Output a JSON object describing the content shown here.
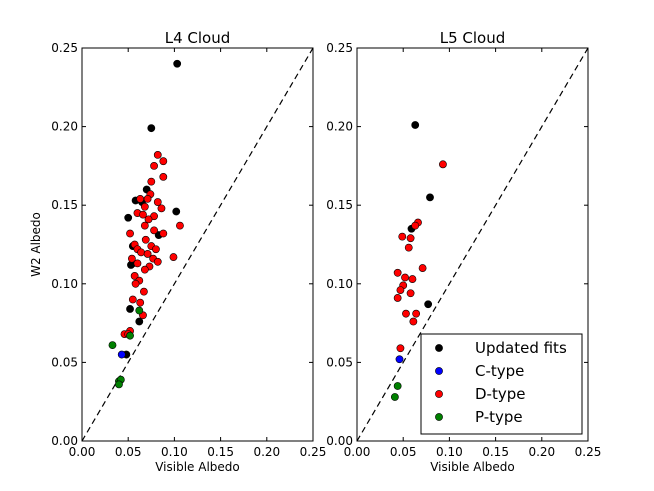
{
  "chart_data": [
    {
      "type": "scatter",
      "title": "L4 Cloud",
      "xlabel": "Visible Albedo",
      "ylabel": "W2 Albedo",
      "xlim": [
        0,
        0.25
      ],
      "ylim": [
        0,
        0.25
      ],
      "xticks": [
        "0.00",
        "0.05",
        "0.10",
        "0.15",
        "0.20",
        "0.25"
      ],
      "yticks": [
        "0.00",
        "0.05",
        "0.10",
        "0.15",
        "0.20",
        "0.25"
      ],
      "reference_line": {
        "style": "dashed",
        "from": [
          0,
          0
        ],
        "to": [
          0.25,
          0.25
        ]
      },
      "series": [
        {
          "name": "Updated fits",
          "color": "#000000",
          "points": [
            [
              0.103,
              0.24
            ],
            [
              0.075,
              0.199
            ],
            [
              0.07,
              0.16
            ],
            [
              0.058,
              0.153
            ],
            [
              0.065,
              0.152
            ],
            [
              0.102,
              0.146
            ],
            [
              0.05,
              0.142
            ],
            [
              0.083,
              0.131
            ],
            [
              0.055,
              0.124
            ],
            [
              0.055,
              0.113
            ],
            [
              0.053,
              0.112
            ],
            [
              0.062,
              0.076
            ],
            [
              0.052,
              0.084
            ],
            [
              0.048,
              0.055
            ]
          ]
        },
        {
          "name": "C-type",
          "color": "#0000ff",
          "points": [
            [
              0.043,
              0.055
            ]
          ]
        },
        {
          "name": "D-type",
          "color": "#ff0000",
          "points": [
            [
              0.082,
              0.182
            ],
            [
              0.088,
              0.178
            ],
            [
              0.078,
              0.175
            ],
            [
              0.088,
              0.168
            ],
            [
              0.075,
              0.165
            ],
            [
              0.063,
              0.154
            ],
            [
              0.074,
              0.157
            ],
            [
              0.071,
              0.154
            ],
            [
              0.082,
              0.152
            ],
            [
              0.068,
              0.149
            ],
            [
              0.086,
              0.148
            ],
            [
              0.06,
              0.145
            ],
            [
              0.066,
              0.144
            ],
            [
              0.078,
              0.143
            ],
            [
              0.072,
              0.141
            ],
            [
              0.106,
              0.137
            ],
            [
              0.078,
              0.134
            ],
            [
              0.068,
              0.137
            ],
            [
              0.088,
              0.132
            ],
            [
              0.052,
              0.132
            ],
            [
              0.069,
              0.128
            ],
            [
              0.057,
              0.125
            ],
            [
              0.06,
              0.122
            ],
            [
              0.075,
              0.124
            ],
            [
              0.08,
              0.122
            ],
            [
              0.064,
              0.12
            ],
            [
              0.071,
              0.119
            ],
            [
              0.099,
              0.117
            ],
            [
              0.054,
              0.116
            ],
            [
              0.077,
              0.116
            ],
            [
              0.082,
              0.114
            ],
            [
              0.06,
              0.113
            ],
            [
              0.073,
              0.111
            ],
            [
              0.068,
              0.109
            ],
            [
              0.057,
              0.105
            ],
            [
              0.062,
              0.102
            ],
            [
              0.058,
              0.1
            ],
            [
              0.067,
              0.095
            ],
            [
              0.055,
              0.09
            ],
            [
              0.063,
              0.088
            ],
            [
              0.052,
              0.07
            ],
            [
              0.046,
              0.068
            ],
            [
              0.066,
              0.08
            ],
            [
              0.05,
              0.068
            ]
          ]
        },
        {
          "name": "P-type",
          "color": "#008000",
          "points": [
            [
              0.033,
              0.061
            ],
            [
              0.062,
              0.083
            ],
            [
              0.052,
              0.067
            ],
            [
              0.04,
              0.038
            ],
            [
              0.042,
              0.039
            ],
            [
              0.04,
              0.036
            ]
          ]
        }
      ]
    },
    {
      "type": "scatter",
      "title": "L5 Cloud",
      "xlabel": "Visible Albedo",
      "ylabel": "",
      "xlim": [
        0,
        0.25
      ],
      "ylim": [
        0,
        0.25
      ],
      "xticks": [
        "0.00",
        "0.05",
        "0.10",
        "0.15",
        "0.20",
        "0.25"
      ],
      "yticks": [
        "0.00",
        "0.05",
        "0.10",
        "0.15",
        "0.20",
        "0.25"
      ],
      "reference_line": {
        "style": "dashed",
        "from": [
          0,
          0
        ],
        "to": [
          0.25,
          0.25
        ]
      },
      "legend_position": "lower-right",
      "series": [
        {
          "name": "Updated fits",
          "color": "#000000",
          "points": [
            [
              0.063,
              0.201
            ],
            [
              0.079,
              0.155
            ],
            [
              0.059,
              0.135
            ],
            [
              0.077,
              0.087
            ]
          ]
        },
        {
          "name": "C-type",
          "color": "#0000ff",
          "points": [
            [
              0.046,
              0.052
            ]
          ]
        },
        {
          "name": "D-type",
          "color": "#ff0000",
          "points": [
            [
              0.093,
              0.176
            ],
            [
              0.066,
              0.139
            ],
            [
              0.063,
              0.137
            ],
            [
              0.049,
              0.13
            ],
            [
              0.058,
              0.129
            ],
            [
              0.056,
              0.123
            ],
            [
              0.071,
              0.11
            ],
            [
              0.044,
              0.107
            ],
            [
              0.052,
              0.104
            ],
            [
              0.06,
              0.103
            ],
            [
              0.05,
              0.099
            ],
            [
              0.047,
              0.096
            ],
            [
              0.058,
              0.094
            ],
            [
              0.044,
              0.091
            ],
            [
              0.053,
              0.081
            ],
            [
              0.064,
              0.081
            ],
            [
              0.061,
              0.076
            ],
            [
              0.047,
              0.059
            ]
          ]
        },
        {
          "name": "P-type",
          "color": "#008000",
          "points": [
            [
              0.044,
              0.035
            ],
            [
              0.041,
              0.028
            ]
          ]
        }
      ]
    }
  ]
}
